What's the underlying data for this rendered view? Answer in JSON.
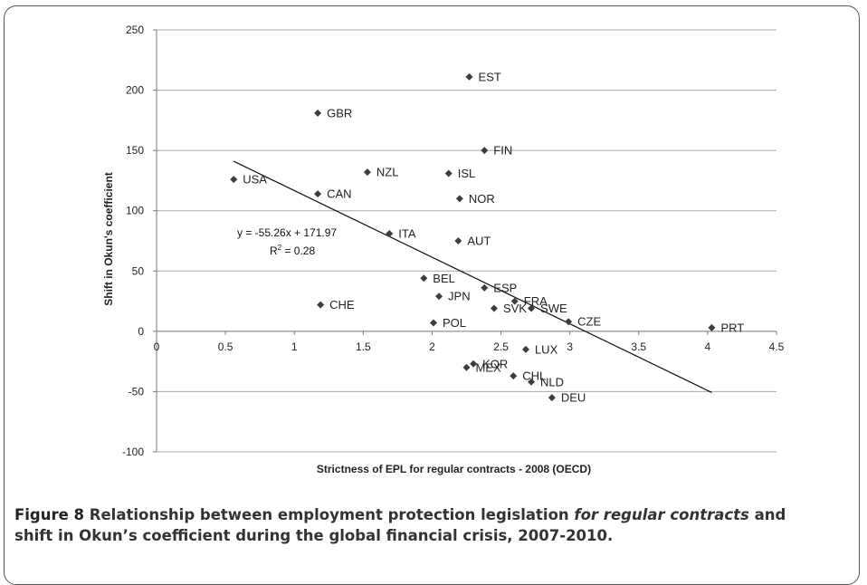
{
  "chart_data": {
    "type": "scatter",
    "xlabel": "Strictness of EPL for regular contracts - 2008 (OECD)",
    "ylabel": "Shift in Okun's coefficient",
    "xlim": [
      0,
      4.5
    ],
    "ylim": [
      -100,
      250
    ],
    "x_ticks": [
      "0",
      "0.5",
      "1",
      "1.5",
      "2",
      "2.5",
      "3",
      "3.5",
      "4",
      "4.5"
    ],
    "y_ticks": [
      "250",
      "200",
      "150",
      "100",
      "50",
      "0",
      "-50",
      "-100"
    ],
    "x_tick_values": [
      0,
      0.5,
      1,
      1.5,
      2,
      2.5,
      3,
      3.5,
      4,
      4.5
    ],
    "y_tick_values": [
      250,
      200,
      150,
      100,
      50,
      0,
      -50,
      -100
    ],
    "grid": "horizontal",
    "marker_color": "#3d3d3d",
    "points": [
      {
        "label": "EST",
        "x": 2.27,
        "y": 211
      },
      {
        "label": "GBR",
        "x": 1.17,
        "y": 181
      },
      {
        "label": "FIN",
        "x": 2.38,
        "y": 150
      },
      {
        "label": "NZL",
        "x": 1.53,
        "y": 132
      },
      {
        "label": "ISL",
        "x": 2.12,
        "y": 131
      },
      {
        "label": "USA",
        "x": 0.56,
        "y": 126
      },
      {
        "label": "CAN",
        "x": 1.17,
        "y": 114
      },
      {
        "label": "NOR",
        "x": 2.2,
        "y": 110
      },
      {
        "label": "ITA",
        "x": 1.69,
        "y": 81
      },
      {
        "label": "AUT",
        "x": 2.19,
        "y": 75
      },
      {
        "label": "BEL",
        "x": 1.94,
        "y": 44
      },
      {
        "label": "ESP",
        "x": 2.38,
        "y": 36
      },
      {
        "label": "JPN",
        "x": 2.05,
        "y": 29
      },
      {
        "label": "FRA",
        "x": 2.6,
        "y": 25
      },
      {
        "label": "CHE",
        "x": 1.19,
        "y": 22
      },
      {
        "label": "SVK",
        "x": 2.45,
        "y": 19
      },
      {
        "label": "SWE",
        "x": 2.72,
        "y": 19
      },
      {
        "label": "CZE",
        "x": 2.99,
        "y": 8
      },
      {
        "label": "POL",
        "x": 2.01,
        "y": 7
      },
      {
        "label": "PRT",
        "x": 4.03,
        "y": 3
      },
      {
        "label": "LUX",
        "x": 2.68,
        "y": -15
      },
      {
        "label": "KOR",
        "x": 2.3,
        "y": -27
      },
      {
        "label": "MEX",
        "x": 2.25,
        "y": -30
      },
      {
        "label": "CHL",
        "x": 2.59,
        "y": -37
      },
      {
        "label": "NLD",
        "x": 2.72,
        "y": -42
      },
      {
        "label": "DEU",
        "x": 2.87,
        "y": -55
      }
    ],
    "trendline": {
      "slope": -55.26,
      "intercept": 171.97,
      "x_start": 0.56,
      "x_end": 4.03
    },
    "equation_line1": "y = -55.26x + 171.97",
    "equation_line2_prefix": "R",
    "equation_line2_sup": "2",
    "equation_line2_suffix": " = 0.28"
  },
  "caption": {
    "label": "Figure 8",
    "text1": " Relationship between employment protection legislation ",
    "italic": "for regular contracts",
    "text2": " and shift in Okun’s coefficient during the global financial crisis, 2007-2010."
  }
}
